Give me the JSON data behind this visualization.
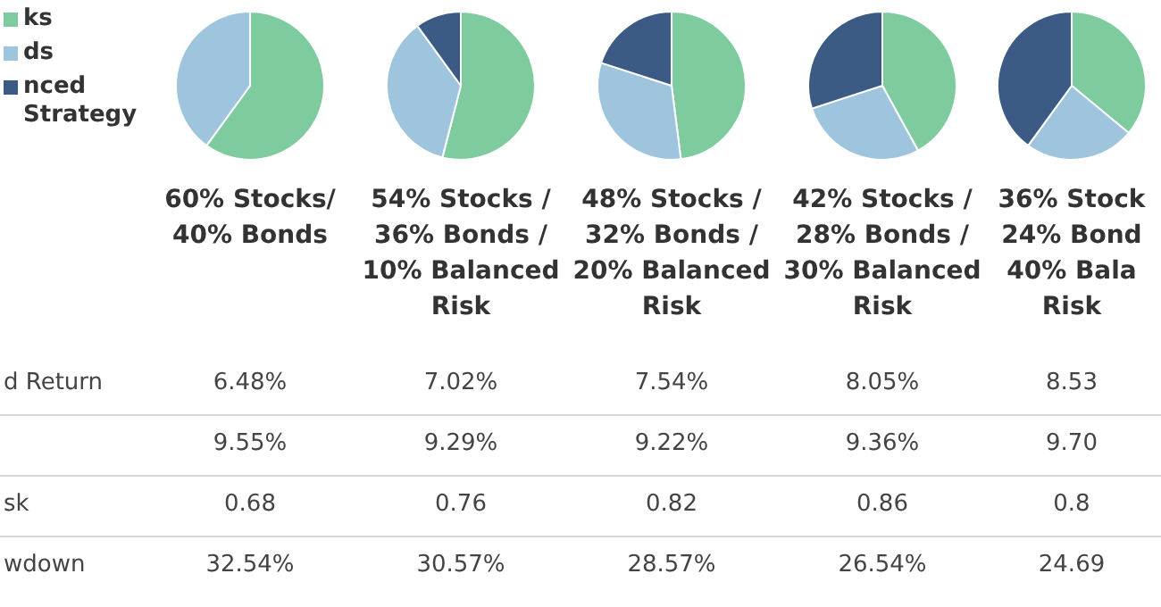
{
  "chart_data": [
    {
      "type": "pie",
      "title": "60% Stocks/\n40% Bonds",
      "categories": [
        "ks",
        "ds",
        "nced\nStrategy"
      ],
      "values": [
        60,
        40,
        0
      ],
      "colors": [
        "#7dcb9f",
        "#9fc4dd",
        "#3b5a84"
      ],
      "legend": "left"
    },
    {
      "type": "pie",
      "title": "54% Stocks /\n36% Bonds /\n10% Balanced\nRisk",
      "categories": [
        null,
        null,
        null
      ],
      "values": [
        54,
        36,
        10
      ],
      "colors": [
        "#7dcb9f",
        "#9fc4dd",
        "#3b5a84"
      ]
    },
    {
      "type": "pie",
      "title": "48% Stocks /\n32% Bonds /\n20% Balanced\nRisk",
      "categories": [
        null,
        null,
        null
      ],
      "values": [
        48,
        32,
        20
      ],
      "colors": [
        "#7dcb9f",
        "#9fc4dd",
        "#3b5a84"
      ]
    },
    {
      "type": "pie",
      "title": "42% Stocks /\n28% Bonds /\n30% Balanced\nRisk",
      "categories": [
        null,
        null,
        null
      ],
      "values": [
        42,
        28,
        30
      ],
      "colors": [
        "#7dcb9f",
        "#9fc4dd",
        "#3b5a84"
      ]
    },
    {
      "type": "pie",
      "title": "36% Stock\n24% Bond\n40% Bala\nRisk",
      "categories": [
        null,
        null,
        null
      ],
      "values": [
        36,
        24,
        40
      ],
      "colors": [
        "#7dcb9f",
        "#9fc4dd",
        "#3b5a84"
      ]
    },
    {
      "type": "other",
      "y_categories": [
        "d Return",
        null,
        "sk",
        "wdown"
      ],
      "cell_labels": [
        [
          "6.48%",
          "7.02%",
          "7.54%",
          "8.05%",
          "8.53"
        ],
        [
          "9.55%",
          "9.29%",
          "9.22%",
          "9.36%",
          "9.70"
        ],
        [
          "0.68",
          "0.76",
          "0.82",
          "0.86",
          "0.8"
        ],
        [
          "32.54%",
          "30.57%",
          "28.57%",
          "26.54%",
          "24.69"
        ]
      ]
    }
  ]
}
